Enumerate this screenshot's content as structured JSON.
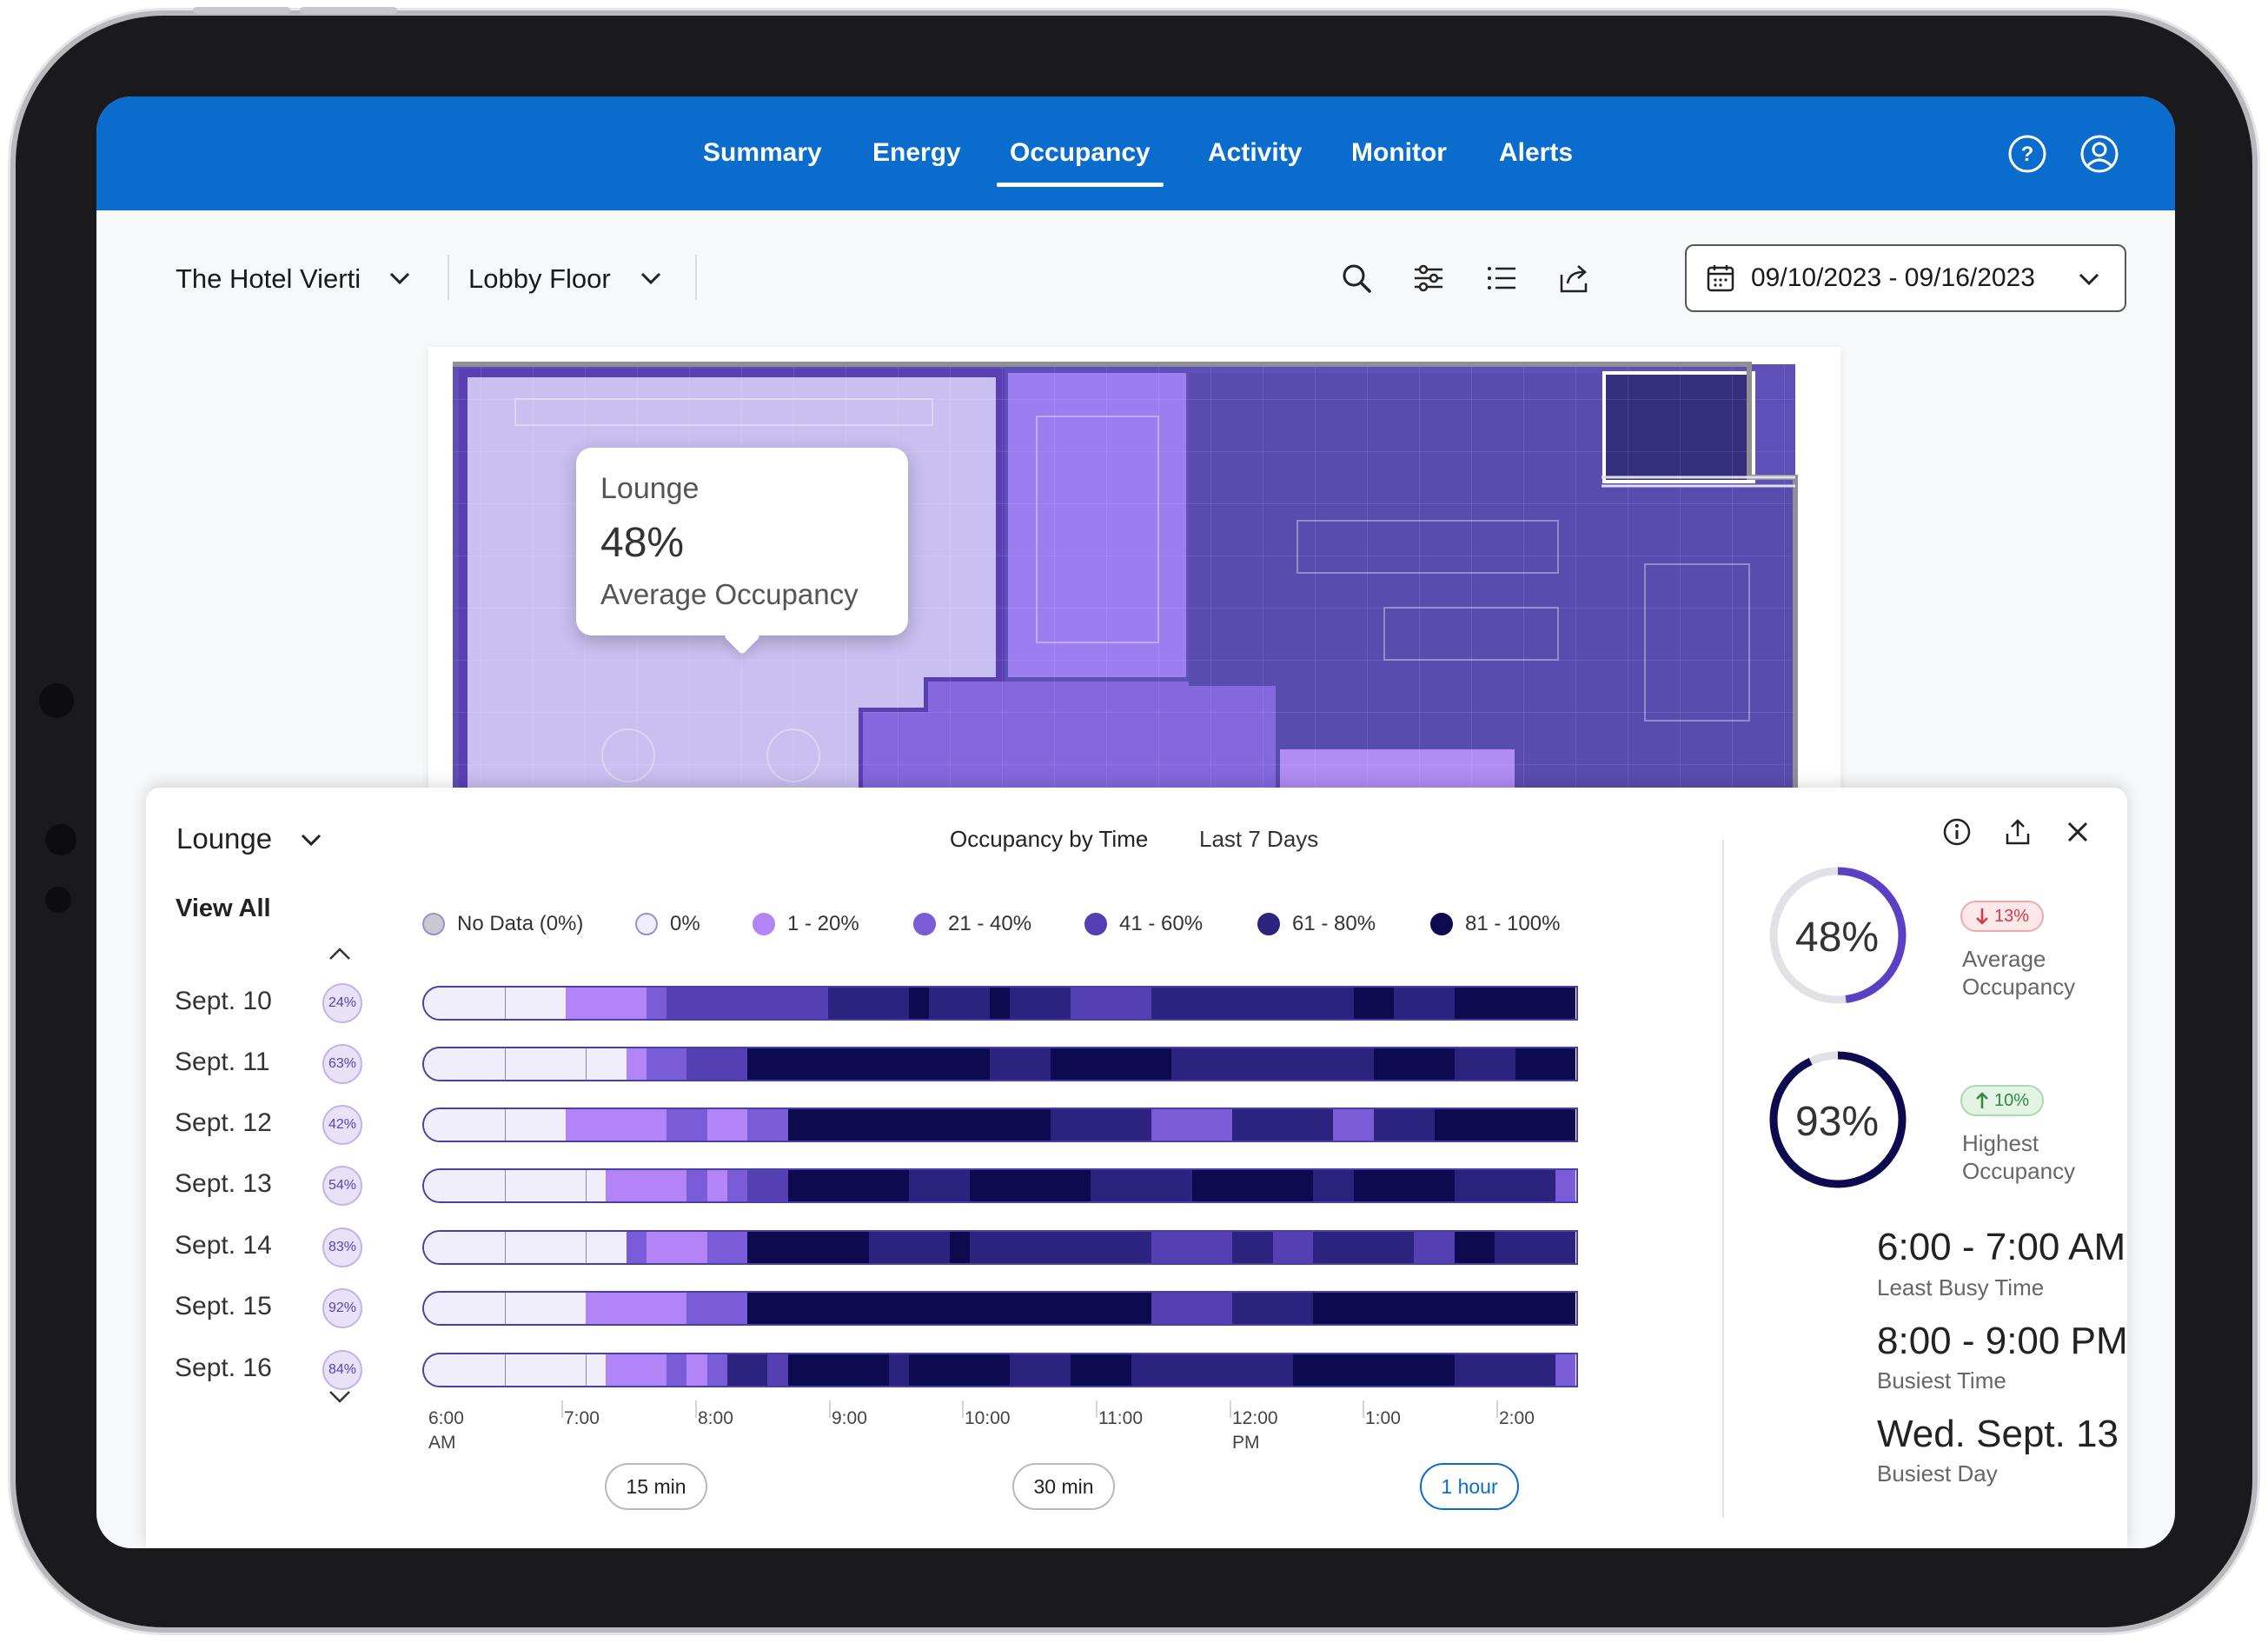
{
  "nav": {
    "tabs": [
      {
        "label": "Summary"
      },
      {
        "label": "Energy"
      },
      {
        "label": "Occupancy",
        "active": true
      },
      {
        "label": "Activity"
      },
      {
        "label": "Monitor"
      },
      {
        "label": "Alerts"
      }
    ],
    "help_icon": "help-circle-icon",
    "profile_icon": "user-circle-icon"
  },
  "toolbar": {
    "property": "The Hotel Vierti",
    "floor": "Lobby Floor",
    "date_range": "09/10/2023 - 09/16/2023"
  },
  "map": {
    "tooltip": {
      "room": "Lounge",
      "value": "48%",
      "metric": "Average Occupancy"
    }
  },
  "panel": {
    "room_selector": "Lounge",
    "chart_title": "Occupancy by Time",
    "period": "Last 7 Days",
    "view_all": "View All",
    "legend": [
      {
        "label": "No Data (0%)",
        "color": "#c9c9cf"
      },
      {
        "label": "0%",
        "color": "#f1eefb"
      },
      {
        "label": "1 - 20%",
        "color": "#b384f5"
      },
      {
        "label": "21 - 40%",
        "color": "#7a5bd8"
      },
      {
        "label": "41 - 60%",
        "color": "#5540b3"
      },
      {
        "label": "61 - 80%",
        "color": "#2b237e"
      },
      {
        "label": "81 - 100%",
        "color": "#0d0a4f"
      }
    ],
    "days": [
      {
        "label": "Sept. 10",
        "avg": "24%"
      },
      {
        "label": "Sept. 11",
        "avg": "63%"
      },
      {
        "label": "Sept. 12",
        "avg": "42%"
      },
      {
        "label": "Sept. 13",
        "avg": "54%"
      },
      {
        "label": "Sept. 14",
        "avg": "83%"
      },
      {
        "label": "Sept. 15",
        "avg": "92%"
      },
      {
        "label": "Sept. 16",
        "avg": "84%"
      }
    ],
    "time_ticks": [
      {
        "t": "6:00",
        "s": "AM"
      },
      {
        "t": "7:00",
        "s": ""
      },
      {
        "t": "8:00",
        "s": ""
      },
      {
        "t": "9:00",
        "s": ""
      },
      {
        "t": "10:00",
        "s": ""
      },
      {
        "t": "11:00",
        "s": ""
      },
      {
        "t": "12:00",
        "s": "PM"
      },
      {
        "t": "1:00",
        "s": ""
      },
      {
        "t": "2:00",
        "s": ""
      }
    ],
    "intervals": [
      {
        "label": "15 min"
      },
      {
        "label": "30 min"
      },
      {
        "label": "1 hour",
        "active": true
      }
    ],
    "stats": {
      "average": {
        "value": "48%",
        "fraction": 0.48,
        "delta": "13%",
        "direction": "down",
        "label1": "Average",
        "label2": "Occupancy"
      },
      "highest": {
        "value": "93%",
        "fraction": 0.93,
        "delta": "10%",
        "direction": "up",
        "label1": "Highest",
        "label2": "Occupancy"
      },
      "least_busy_time": {
        "value": "6:00 - 7:00 AM",
        "label": "Least Busy Time"
      },
      "busiest_time": {
        "value": "8:00 - 9:00 PM",
        "label": "Busiest Time"
      },
      "busiest_day": {
        "value": "Wed. Sept. 13",
        "label": "Busiest Day"
      }
    }
  },
  "chart_data": {
    "type": "heatmap",
    "title": "Occupancy by Time",
    "subtitle": "Last 7 Days",
    "rows": [
      "Sept. 10",
      "Sept. 11",
      "Sept. 12",
      "Sept. 13",
      "Sept. 14",
      "Sept. 15",
      "Sept. 16"
    ],
    "x_start": "6:00 AM",
    "x_ticks": [
      "6:00 AM",
      "7:00",
      "8:00",
      "9:00",
      "10:00",
      "11:00",
      "12:00 PM",
      "1:00",
      "2:00"
    ],
    "bins_per_hour": 4,
    "levels": [
      "0%",
      "1 - 20%",
      "21 - 40%",
      "41 - 60%",
      "61 - 80%",
      "81 - 100%"
    ],
    "values": [
      [
        0,
        0,
        0,
        0,
        0,
        0,
        0,
        1,
        1,
        1,
        1,
        2,
        3,
        3,
        3,
        3,
        3,
        3,
        3,
        3,
        4,
        4,
        4,
        4,
        5,
        4,
        4,
        4,
        5,
        4,
        4,
        4,
        3,
        3,
        3,
        3,
        4,
        4,
        4,
        4,
        4,
        4,
        4,
        4,
        4,
        4,
        5,
        5,
        4,
        4,
        4,
        5,
        5,
        5,
        5,
        5,
        5
      ],
      [
        0,
        0,
        0,
        0,
        0,
        0,
        0,
        0,
        0,
        0,
        1,
        2,
        2,
        3,
        3,
        3,
        5,
        5,
        5,
        5,
        5,
        5,
        5,
        5,
        5,
        5,
        5,
        5,
        4,
        4,
        4,
        5,
        5,
        5,
        5,
        5,
        5,
        4,
        4,
        4,
        4,
        4,
        4,
        4,
        4,
        4,
        4,
        5,
        5,
        5,
        5,
        4,
        4,
        4,
        5,
        5,
        5
      ],
      [
        0,
        0,
        0,
        0,
        0,
        0,
        0,
        1,
        1,
        1,
        1,
        1,
        2,
        2,
        1,
        1,
        2,
        2,
        5,
        5,
        5,
        5,
        5,
        5,
        5,
        5,
        5,
        5,
        5,
        5,
        5,
        4,
        4,
        4,
        4,
        4,
        2,
        2,
        2,
        2,
        4,
        4,
        4,
        4,
        4,
        2,
        2,
        4,
        4,
        4,
        5,
        5,
        5,
        5,
        5,
        5,
        5
      ],
      [
        0,
        0,
        0,
        0,
        0,
        0,
        0,
        0,
        0,
        1,
        1,
        1,
        1,
        2,
        1,
        2,
        3,
        3,
        5,
        5,
        5,
        5,
        5,
        5,
        4,
        4,
        4,
        5,
        5,
        5,
        5,
        5,
        5,
        4,
        4,
        4,
        4,
        4,
        5,
        5,
        5,
        5,
        5,
        5,
        4,
        4,
        5,
        5,
        5,
        5,
        5,
        4,
        4,
        4,
        4,
        4,
        2
      ],
      [
        0,
        0,
        0,
        0,
        0,
        0,
        0,
        0,
        0,
        0,
        2,
        1,
        1,
        1,
        2,
        2,
        5,
        5,
        5,
        5,
        5,
        5,
        4,
        4,
        4,
        4,
        5,
        4,
        4,
        4,
        4,
        4,
        4,
        4,
        4,
        4,
        3,
        3,
        3,
        3,
        4,
        4,
        3,
        3,
        4,
        4,
        4,
        4,
        4,
        3,
        3,
        5,
        5,
        4,
        4,
        4,
        4
      ],
      [
        0,
        0,
        0,
        0,
        0,
        0,
        0,
        0,
        1,
        1,
        1,
        1,
        1,
        2,
        2,
        2,
        5,
        5,
        5,
        5,
        5,
        5,
        5,
        5,
        5,
        5,
        5,
        5,
        5,
        5,
        5,
        5,
        5,
        5,
        5,
        5,
        3,
        3,
        3,
        3,
        4,
        4,
        4,
        4,
        5,
        5,
        5,
        5,
        5,
        5,
        5,
        5,
        5,
        5,
        5,
        5,
        5
      ],
      [
        0,
        0,
        0,
        0,
        0,
        0,
        0,
        0,
        0,
        1,
        1,
        1,
        2,
        1,
        2,
        4,
        4,
        3,
        5,
        5,
        5,
        5,
        5,
        4,
        5,
        5,
        5,
        5,
        5,
        4,
        4,
        4,
        5,
        5,
        5,
        4,
        4,
        4,
        4,
        4,
        4,
        4,
        4,
        5,
        5,
        5,
        5,
        5,
        5,
        5,
        5,
        4,
        4,
        4,
        4,
        4,
        2
      ]
    ]
  }
}
